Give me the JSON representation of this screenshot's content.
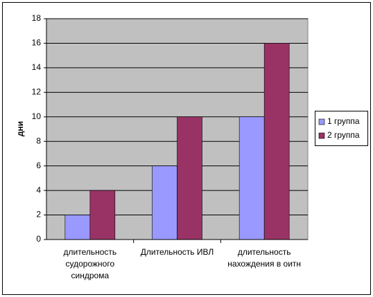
{
  "chart_data": {
    "type": "bar",
    "y_label": "дни",
    "categories": [
      "длительность судорожного синдрома",
      "Длительность ИВЛ",
      "длительность нахождения в оитн"
    ],
    "series": [
      {
        "name": "1 группа",
        "color": "#9999ff",
        "values": [
          2,
          6,
          10
        ]
      },
      {
        "name": "2 группа",
        "color": "#993366",
        "values": [
          4,
          10,
          16
        ]
      }
    ],
    "ylim": [
      0,
      18
    ],
    "yticks": [
      0,
      2,
      4,
      6,
      8,
      10,
      12,
      14,
      16,
      18
    ],
    "grid": true,
    "legend": "right"
  }
}
